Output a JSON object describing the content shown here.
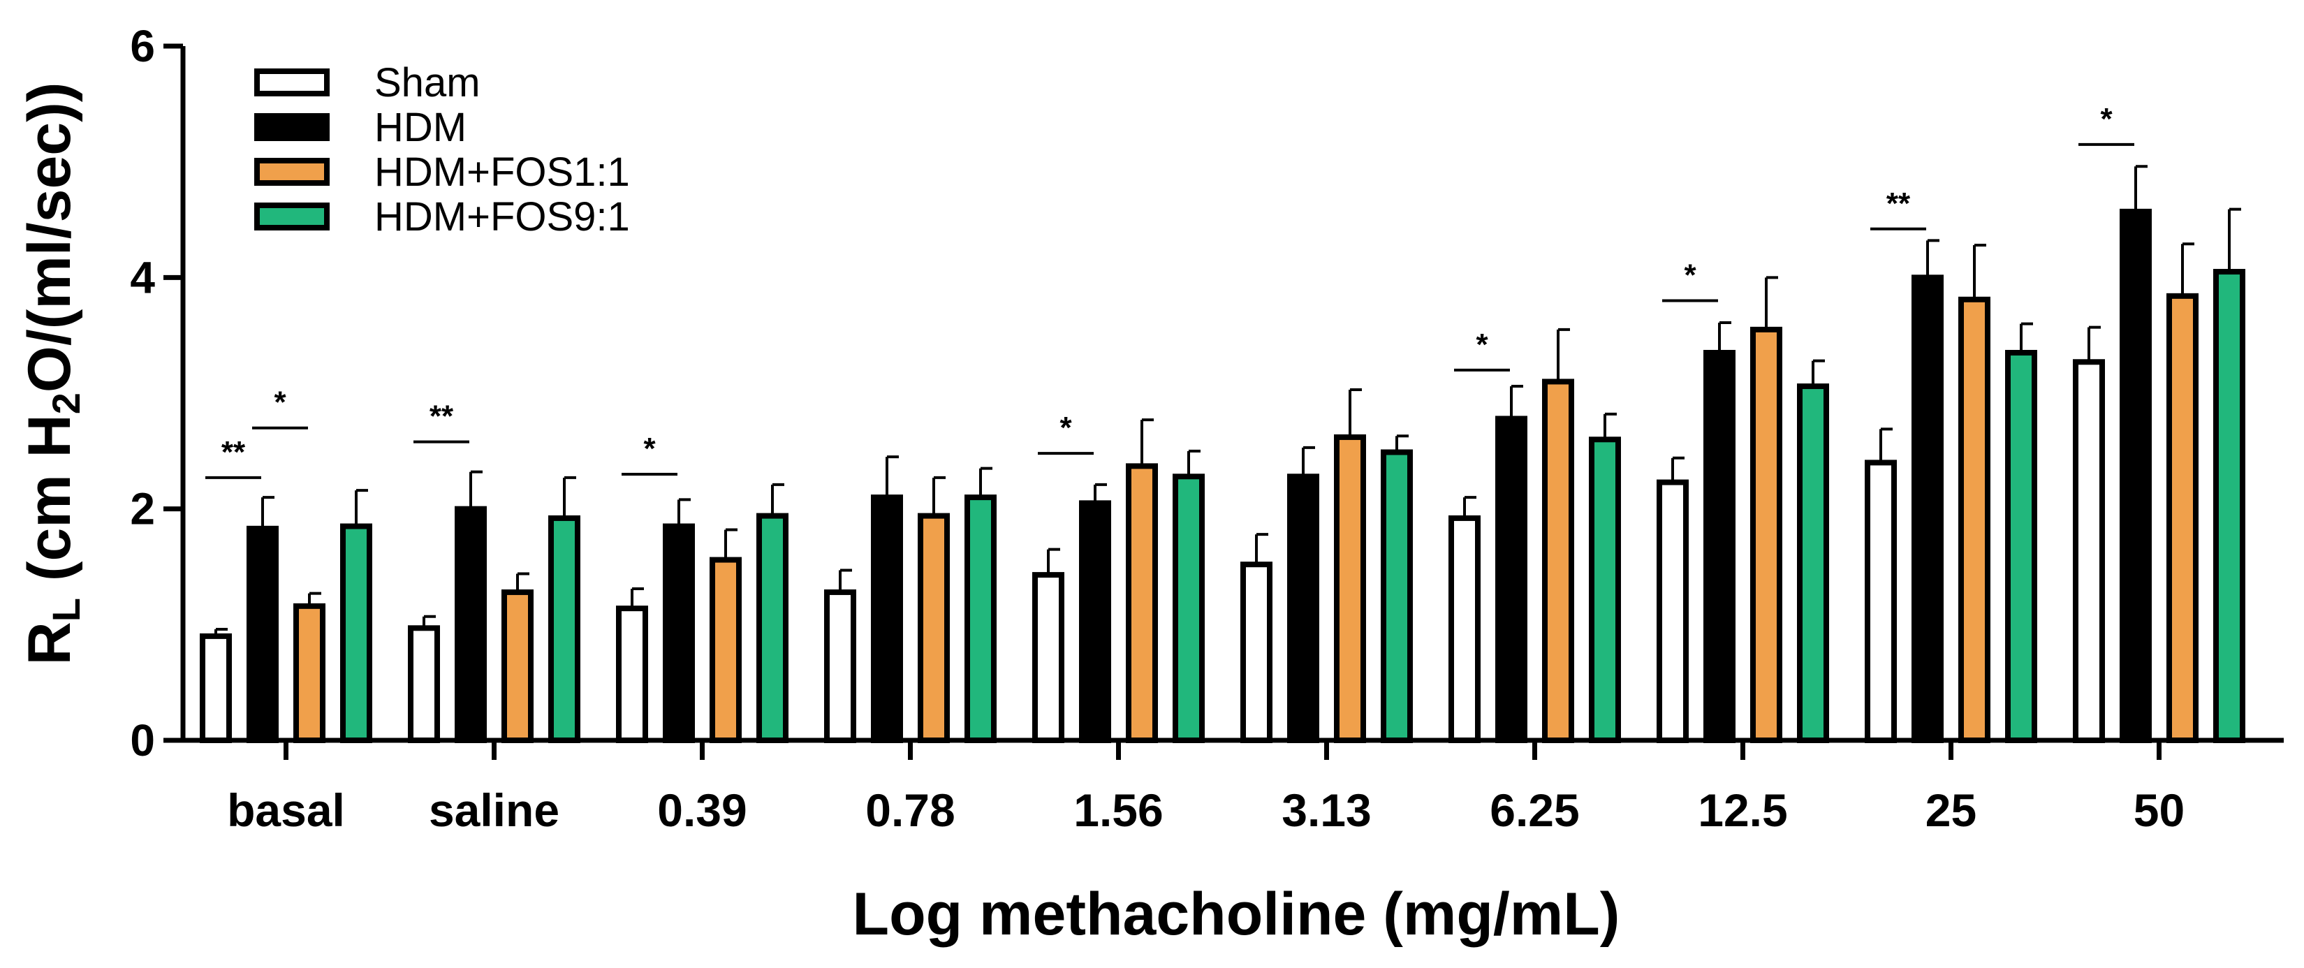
{
  "chart_data": {
    "type": "bar",
    "title": "",
    "xlabel": "Log methacholine (mg/mL)",
    "ylabel": {
      "main": "R",
      "sub_L": "L",
      "paren_open": " (cm H",
      "sub_2": "2",
      "rest": "O/(ml/sec))"
    },
    "ylim": [
      0,
      6
    ],
    "yticks": [
      "0",
      "2",
      "4",
      "6"
    ],
    "categories": [
      "basal",
      "saline",
      "0.39",
      "0.78",
      "1.56",
      "3.13",
      "6.25",
      "12.5",
      "25",
      "50"
    ],
    "legend_position": "top-left",
    "series": [
      {
        "name": "Sham",
        "color": "#ffffff",
        "outline": "#000000",
        "values": [
          0.9,
          0.97,
          1.14,
          1.28,
          1.43,
          1.52,
          1.92,
          2.23,
          2.4,
          3.27
        ],
        "errors": [
          0.06,
          0.1,
          0.17,
          0.19,
          0.22,
          0.26,
          0.18,
          0.21,
          0.29,
          0.3
        ]
      },
      {
        "name": "HDM",
        "color": "#000000",
        "outline": "#000000",
        "values": [
          1.83,
          2.0,
          1.85,
          2.1,
          2.05,
          2.28,
          2.78,
          3.35,
          4.0,
          4.57
        ],
        "errors": [
          0.27,
          0.32,
          0.23,
          0.35,
          0.16,
          0.25,
          0.28,
          0.26,
          0.32,
          0.39
        ]
      },
      {
        "name": "HDM+FOS1:1",
        "color": "#f0a04b",
        "outline": "#000000",
        "values": [
          1.16,
          1.28,
          1.56,
          1.94,
          2.37,
          2.62,
          3.1,
          3.55,
          3.81,
          3.84
        ],
        "errors": [
          0.11,
          0.16,
          0.26,
          0.33,
          0.4,
          0.41,
          0.45,
          0.45,
          0.47,
          0.45
        ]
      },
      {
        "name": "HDM+FOS9:1",
        "color": "#21b77c",
        "outline": "#000000",
        "values": [
          1.85,
          1.92,
          1.94,
          2.1,
          2.28,
          2.49,
          2.6,
          3.06,
          3.35,
          4.05
        ],
        "errors": [
          0.31,
          0.35,
          0.27,
          0.25,
          0.22,
          0.14,
          0.22,
          0.22,
          0.25,
          0.54
        ]
      }
    ],
    "significance": [
      {
        "category": 0,
        "from_series": 0,
        "to_series": 1,
        "label": "**",
        "y": 2.27
      },
      {
        "category": 0,
        "from_series": 1,
        "to_series": 2,
        "label": "*",
        "y": 2.7
      },
      {
        "category": 1,
        "from_series": 0,
        "to_series": 1,
        "label": "**",
        "y": 2.58
      },
      {
        "category": 2,
        "from_series": 0,
        "to_series": 1,
        "label": "*",
        "y": 2.3
      },
      {
        "category": 4,
        "from_series": 0,
        "to_series": 1,
        "label": "*",
        "y": 2.48
      },
      {
        "category": 6,
        "from_series": 0,
        "to_series": 1,
        "label": "*",
        "y": 3.2
      },
      {
        "category": 7,
        "from_series": 0,
        "to_series": 1,
        "label": "*",
        "y": 3.8
      },
      {
        "category": 8,
        "from_series": 0,
        "to_series": 1,
        "label": "**",
        "y": 4.42
      },
      {
        "category": 9,
        "from_series": 0,
        "to_series": 1,
        "label": "*",
        "y": 5.15
      }
    ]
  }
}
